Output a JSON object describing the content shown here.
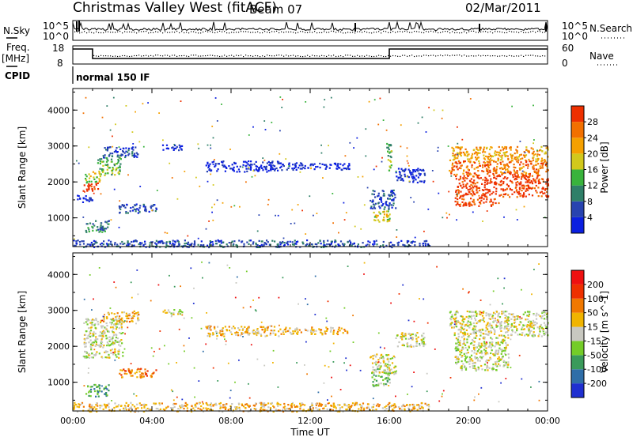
{
  "header": {
    "title": "Christmas Valley West (fitACF)",
    "beam": "Beam 07",
    "date": "02/Mar/2011"
  },
  "panels": {
    "nsky": {
      "label": "N.Sky",
      "ticks": [
        "10^5",
        "10^0"
      ]
    },
    "nsearch": {
      "label": "N.Search",
      "ticks": [
        "10^5",
        "10^0"
      ]
    },
    "freq": {
      "label_line1": "Freq.",
      "label_line2": "[MHz]",
      "ticks": [
        "18",
        "8"
      ]
    },
    "nave": {
      "label": "Nave",
      "ticks": [
        "60",
        "0"
      ]
    },
    "cpid": {
      "label": "CPID",
      "text": "normal 150 IF"
    }
  },
  "chart_data": [
    {
      "type": "heatmap",
      "name": "power",
      "ylabel": "Slant Range [km]",
      "xlabel": "",
      "xlim": [
        0,
        24
      ],
      "ylim": [
        200,
        4600
      ],
      "yticks": [
        "1000",
        "2000",
        "3000",
        "4000"
      ],
      "colorbar": {
        "label": "Power [dB]",
        "tick_labels": [
          "4",
          "8",
          "12",
          "16",
          "20",
          "24",
          "28"
        ],
        "colors": [
          "#0b1fe0",
          "#2843b0",
          "#2f7f68",
          "#39b33c",
          "#d2c81c",
          "#f5a000",
          "#f27000",
          "#ee3000"
        ]
      },
      "regions": [
        {
          "x0": 0.5,
          "x1": 1.3,
          "y0": 1750,
          "y1": 2000,
          "level": 7
        },
        {
          "x0": 0.6,
          "x1": 1.4,
          "y0": 2000,
          "y1": 2300,
          "level": 4
        },
        {
          "x0": 1.2,
          "x1": 2.4,
          "y0": 2200,
          "y1": 2700,
          "level": 3
        },
        {
          "x0": 1.5,
          "x1": 3.3,
          "y0": 2700,
          "y1": 3000,
          "level": 1
        },
        {
          "x0": 0.6,
          "x1": 1.8,
          "y0": 620,
          "y1": 950,
          "level": 2
        },
        {
          "x0": 2.3,
          "x1": 4.2,
          "y0": 1150,
          "y1": 1400,
          "level": 1
        },
        {
          "x0": 0.2,
          "x1": 1.0,
          "y0": 1450,
          "y1": 1650,
          "level": 0
        },
        {
          "x0": 4.5,
          "x1": 5.5,
          "y0": 2900,
          "y1": 3050,
          "level": 0
        },
        {
          "x0": 6.7,
          "x1": 10.5,
          "y0": 2300,
          "y1": 2600,
          "level": 0
        },
        {
          "x0": 10.5,
          "x1": 14.0,
          "y0": 2350,
          "y1": 2550,
          "level": 0
        },
        {
          "x0": 15.1,
          "x1": 16.0,
          "y0": 900,
          "y1": 1250,
          "level": 4
        },
        {
          "x0": 15.0,
          "x1": 16.3,
          "y0": 1250,
          "y1": 1800,
          "level": 1
        },
        {
          "x0": 15.8,
          "x1": 16.1,
          "y0": 2300,
          "y1": 3100,
          "level": 3
        },
        {
          "x0": 16.3,
          "x1": 17.8,
          "y0": 2000,
          "y1": 2400,
          "level": 0
        },
        {
          "x0": 19.0,
          "x1": 24.0,
          "y0": 2600,
          "y1": 3000,
          "level": 5
        },
        {
          "x0": 19.0,
          "x1": 24.0,
          "y0": 2200,
          "y1": 2600,
          "level": 6
        },
        {
          "x0": 19.3,
          "x1": 21.5,
          "y0": 1350,
          "y1": 2200,
          "level": 7
        },
        {
          "x0": 21.5,
          "x1": 24.0,
          "y0": 1600,
          "y1": 2200,
          "level": 7
        },
        {
          "x0": 0.0,
          "x1": 18.0,
          "y0": 200,
          "y1": 400,
          "level": 1
        }
      ]
    },
    {
      "type": "heatmap",
      "name": "velocity",
      "ylabel": "Slant Range [km]",
      "xlabel": "Time UT",
      "xlim": [
        0,
        24
      ],
      "ylim": [
        200,
        4600
      ],
      "xticks": [
        "00:00",
        "04:00",
        "08:00",
        "12:00",
        "16:00",
        "20:00",
        "00:00"
      ],
      "yticks": [
        "1000",
        "2000",
        "3000",
        "4000"
      ],
      "colorbar": {
        "label": "Velocity [m s^-1]",
        "tick_labels": [
          "200",
          "100",
          "50",
          "15",
          "-15",
          "-50",
          "-100",
          "-200"
        ],
        "colors": [
          "#1f2fd0",
          "#2f6ea8",
          "#3a9a5a",
          "#74cc28",
          "#c8c8c0",
          "#f0b400",
          "#f07800",
          "#ee3000",
          "#ee1010"
        ]
      },
      "regions": [
        {
          "x0": 0.5,
          "x1": 2.5,
          "y0": 1700,
          "y1": 2800,
          "level": 4
        },
        {
          "x0": 1.5,
          "x1": 3.3,
          "y0": 2700,
          "y1": 3000,
          "level": 5
        },
        {
          "x0": 0.6,
          "x1": 1.8,
          "y0": 620,
          "y1": 950,
          "level": 2
        },
        {
          "x0": 2.3,
          "x1": 4.2,
          "y0": 1150,
          "y1": 1400,
          "level": 6
        },
        {
          "x0": 4.5,
          "x1": 5.5,
          "y0": 2900,
          "y1": 3050,
          "level": 4
        },
        {
          "x0": 6.7,
          "x1": 10.5,
          "y0": 2300,
          "y1": 2600,
          "level": 5
        },
        {
          "x0": 10.5,
          "x1": 14.0,
          "y0": 2350,
          "y1": 2550,
          "level": 5
        },
        {
          "x0": 15.1,
          "x1": 16.0,
          "y0": 900,
          "y1": 1400,
          "level": 3
        },
        {
          "x0": 15.0,
          "x1": 16.3,
          "y0": 1250,
          "y1": 1800,
          "level": 4
        },
        {
          "x0": 16.3,
          "x1": 17.8,
          "y0": 2000,
          "y1": 2400,
          "level": 4
        },
        {
          "x0": 19.0,
          "x1": 24.0,
          "y0": 2300,
          "y1": 3000,
          "level": 4
        },
        {
          "x0": 19.3,
          "x1": 22.0,
          "y0": 1350,
          "y1": 2300,
          "level": 4
        },
        {
          "x0": 0.0,
          "x1": 18.0,
          "y0": 200,
          "y1": 450,
          "level": 5
        }
      ]
    }
  ]
}
